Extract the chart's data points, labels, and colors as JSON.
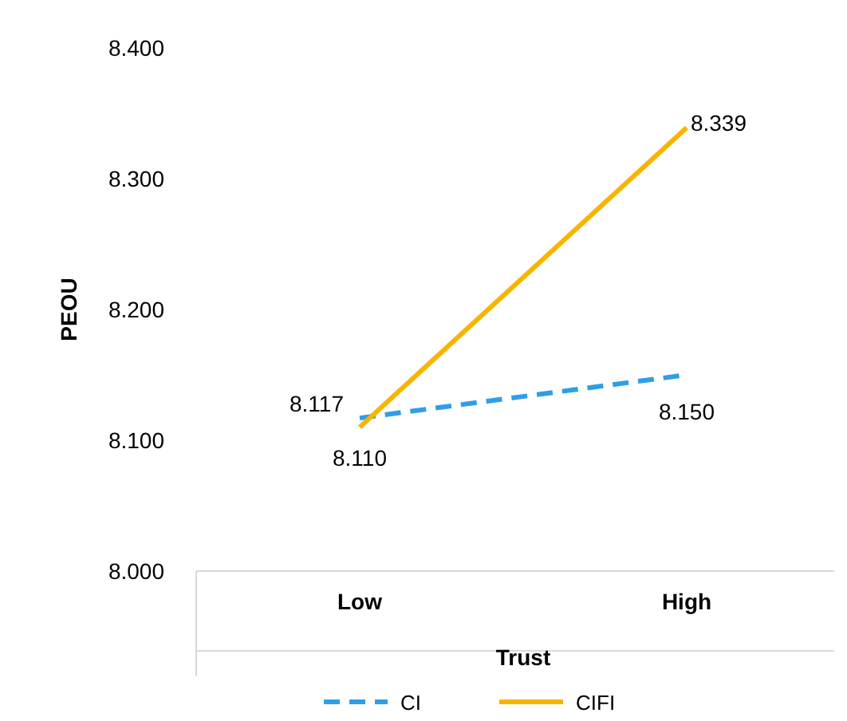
{
  "chart_data": {
    "type": "line",
    "xlabel": "Trust",
    "ylabel": "PEOU",
    "categories": [
      "Low",
      "High"
    ],
    "series": [
      {
        "name": "CI",
        "color": "#2f9ee6",
        "values": [
          8.117,
          8.15
        ],
        "value_labels": [
          "8.117",
          "8.150"
        ],
        "line_style": "dashed"
      },
      {
        "name": "CIFI",
        "color": "#f7b500",
        "values": [
          8.11,
          8.339
        ],
        "value_labels": [
          "8.110",
          "8.339"
        ],
        "line_style": "solid"
      }
    ],
    "ylim": [
      8.0,
      8.4
    ],
    "yticks": [
      {
        "value": 8.0,
        "label": "8.000"
      },
      {
        "value": 8.1,
        "label": "8.100"
      },
      {
        "value": 8.2,
        "label": "8.200"
      },
      {
        "value": 8.3,
        "label": "8.300"
      },
      {
        "value": 8.4,
        "label": "8.400"
      }
    ],
    "grid": false,
    "legend": "bottom",
    "marker": "none"
  }
}
